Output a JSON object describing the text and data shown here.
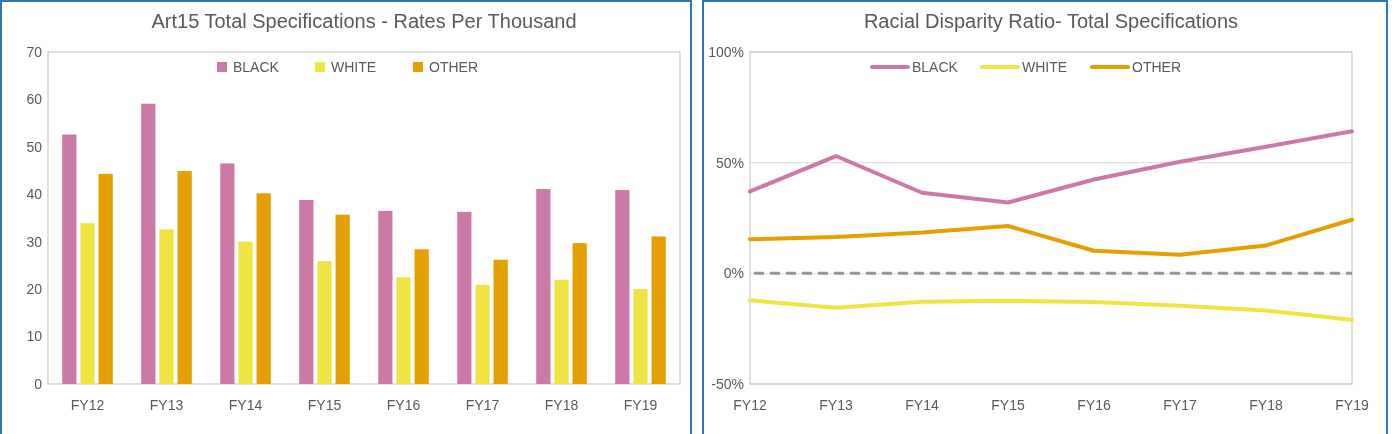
{
  "chart_data": [
    {
      "type": "bar",
      "title": "Art15 Total Specifications - Rates Per Thousand",
      "categories": [
        "FY12",
        "FY13",
        "FY14",
        "FY15",
        "FY16",
        "FY17",
        "FY18",
        "FY19"
      ],
      "series": [
        {
          "name": "BLACK",
          "color": "#cc79a7",
          "values": [
            52.6,
            59.1,
            46.5,
            38.8,
            36.5,
            36.3,
            41.1,
            40.9
          ]
        },
        {
          "name": "WHITE",
          "color": "#f0e442",
          "values": [
            33.9,
            32.6,
            30,
            25.9,
            22.5,
            20.9,
            22,
            20
          ]
        },
        {
          "name": "OTHER",
          "color": "#e69f00",
          "values": [
            44.3,
            44.9,
            40.2,
            35.7,
            28.4,
            26.2,
            29.7,
            31.1
          ]
        }
      ],
      "ylim": [
        0,
        70
      ],
      "yticks": [
        0,
        10,
        20,
        30,
        40,
        50,
        60,
        70
      ],
      "grid": false,
      "legend": "top"
    },
    {
      "type": "line",
      "title": "Racial Disparity Ratio- Total Specifications",
      "categories": [
        "FY12",
        "FY13",
        "FY14",
        "FY15",
        "FY16",
        "FY17",
        "FY18",
        "FY19"
      ],
      "series": [
        {
          "name": "BLACK",
          "color": "#cc79a7",
          "values": [
            37,
            53,
            36.4,
            32,
            42.4,
            50.4,
            57.2,
            64.2
          ]
        },
        {
          "name": "WHITE",
          "color": "#f0e442",
          "values": [
            -12.2,
            -15.6,
            -12.8,
            -12.4,
            -13,
            -14.6,
            -16.8,
            -21
          ]
        },
        {
          "name": "OTHER",
          "color": "#e69f00",
          "values": [
            15.4,
            16.4,
            18.4,
            21.4,
            10.2,
            8.4,
            12.6,
            24.2
          ]
        }
      ],
      "ylim": [
        -50,
        100
      ],
      "yticks": [
        {
          "value": -50,
          "label": "-50%"
        },
        {
          "value": 0,
          "label": "0%"
        },
        {
          "value": 50,
          "label": "50%"
        },
        {
          "value": 100,
          "label": "100%"
        }
      ],
      "grid": "y",
      "legend": "top",
      "line_style": "solid",
      "ref_lines": [
        {
          "axis": "y",
          "value": 0,
          "color": "#8e97a3",
          "line_style": "dashed"
        }
      ]
    }
  ]
}
